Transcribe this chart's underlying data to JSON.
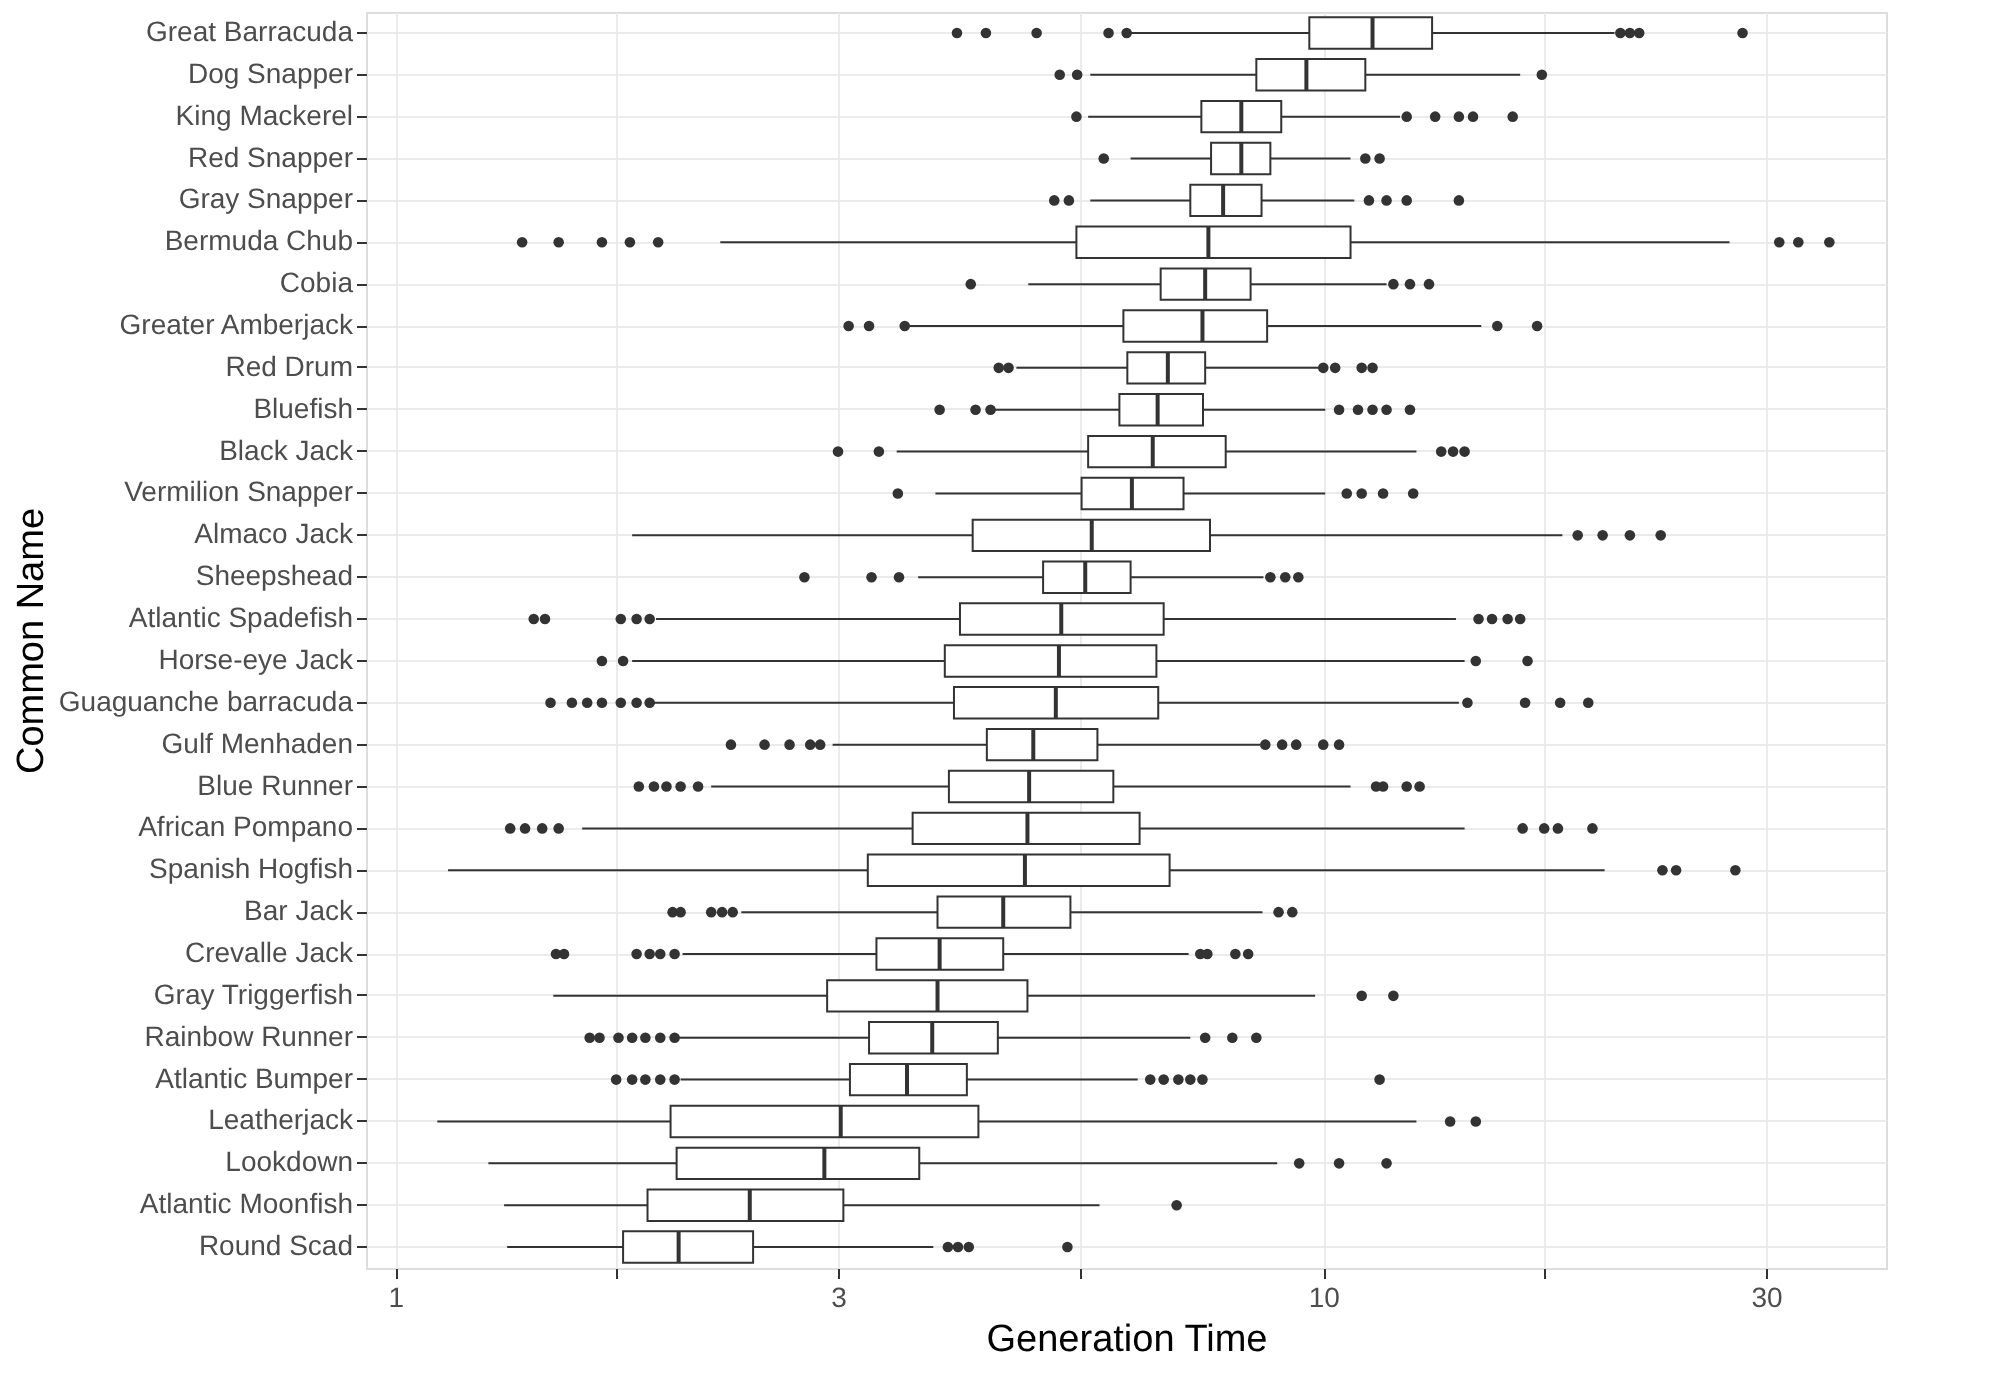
{
  "chart_data": {
    "type": "box",
    "orientation": "horizontal",
    "xlabel": "Generation Time",
    "ylabel": "Common Name",
    "log": "x",
    "grid": true,
    "xlim": [
      0.93,
      40.4
    ],
    "xticks": [
      1,
      {
        "value": 1.732,
        "label": null
      },
      3,
      {
        "value": 5.477,
        "label": null
      },
      10,
      {
        "value": 17.32,
        "label": null
      },
      30
    ],
    "categories": [
      "Great Barracuda",
      "Dog Snapper",
      "King Mackerel",
      "Red Snapper",
      "Gray Snapper",
      "Bermuda Chub",
      "Cobia",
      "Greater Amberjack",
      "Red Drum",
      "Bluefish",
      "Black Jack",
      "Vermilion Snapper",
      "Almaco Jack",
      "Sheepshead",
      "Atlantic Spadefish",
      "Horse-eye Jack",
      "Guaguanche barracuda",
      "Gulf Menhaden",
      "Blue Runner",
      "African Pompano",
      "Spanish Hogfish",
      "Bar Jack",
      "Crevalle Jack",
      "Gray Triggerfish",
      "Rainbow Runner",
      "Atlantic Bumper",
      "Leatherjack",
      "Lookdown",
      "Atlantic Moonfish",
      "Round Scad"
    ],
    "series": [
      {
        "color": "#333333",
        "boxes": [
          {
            "low": 6.2,
            "q1": 9.66,
            "median": 11.3,
            "q3": 13.1,
            "high": 20.6,
            "outliers": [
              4.03,
              4.33,
              4.91,
              5.87,
              6.14,
              20.9,
              21.4,
              21.9,
              28.3
            ]
          },
          {
            "low": 5.61,
            "q1": 8.47,
            "median": 9.59,
            "q3": 11.1,
            "high": 16.3,
            "outliers": [
              5.2,
              5.43,
              17.2
            ]
          },
          {
            "low": 5.58,
            "q1": 7.39,
            "median": 8.16,
            "q3": 9.01,
            "high": 12.1,
            "outliers": [
              5.42,
              12.3,
              13.2,
              14.0,
              14.5,
              16.0
            ]
          },
          {
            "low": 6.2,
            "q1": 7.57,
            "median": 8.16,
            "q3": 8.77,
            "high": 10.7,
            "outliers": [
              5.8,
              11.1,
              11.5
            ]
          },
          {
            "low": 5.61,
            "q1": 7.19,
            "median": 7.8,
            "q3": 8.58,
            "high": 10.8,
            "outliers": [
              5.13,
              5.32,
              11.2,
              11.7,
              12.3,
              14.0
            ]
          },
          {
            "low": 2.24,
            "q1": 5.42,
            "median": 7.52,
            "q3": 10.7,
            "high": 27.4,
            "outliers": [
              1.37,
              1.5,
              1.67,
              1.79,
              1.92,
              31.0,
              32.5,
              35.1
            ]
          },
          {
            "low": 4.81,
            "q1": 6.68,
            "median": 7.46,
            "q3": 8.35,
            "high": 11.7,
            "outliers": [
              4.17,
              11.9,
              12.4,
              13.0
            ]
          },
          {
            "low": 3.57,
            "q1": 6.09,
            "median": 7.41,
            "q3": 8.7,
            "high": 14.8,
            "outliers": [
              3.08,
              3.24,
              3.54,
              15.4,
              17.0
            ]
          },
          {
            "low": 4.67,
            "q1": 6.15,
            "median": 6.8,
            "q3": 7.46,
            "high": 9.88,
            "outliers": [
              4.47,
              4.58,
              10.0,
              10.3,
              11.0,
              11.3
            ]
          },
          {
            "low": 4.41,
            "q1": 6.03,
            "median": 6.63,
            "q3": 7.42,
            "high": 10.05,
            "outliers": [
              3.86,
              4.22,
              4.38,
              10.4,
              10.9,
              11.3,
              11.7,
              12.4
            ]
          },
          {
            "low": 3.47,
            "q1": 5.58,
            "median": 6.55,
            "q3": 7.85,
            "high": 12.6,
            "outliers": [
              3.0,
              3.32,
              13.4,
              13.8,
              14.2
            ]
          },
          {
            "low": 3.82,
            "q1": 5.49,
            "median": 6.22,
            "q3": 7.07,
            "high": 10.05,
            "outliers": [
              3.48,
              10.6,
              11.0,
              11.6,
              12.5
            ]
          },
          {
            "low": 1.8,
            "q1": 4.19,
            "median": 5.63,
            "q3": 7.55,
            "high": 18.1,
            "outliers": [
              18.8,
              20.0,
              21.4,
              23.1
            ]
          },
          {
            "low": 3.66,
            "q1": 4.99,
            "median": 5.54,
            "q3": 6.2,
            "high": 8.62,
            "outliers": [
              2.76,
              3.26,
              3.49,
              8.77,
              9.1,
              9.4
            ]
          },
          {
            "low": 1.91,
            "q1": 4.06,
            "median": 5.22,
            "q3": 6.73,
            "high": 13.9,
            "outliers": [
              1.41,
              1.45,
              1.75,
              1.82,
              1.88,
              14.7,
              15.2,
              15.8,
              16.3
            ]
          },
          {
            "low": 1.8,
            "q1": 3.91,
            "median": 5.19,
            "q3": 6.61,
            "high": 14.2,
            "outliers": [
              1.67,
              1.76,
              14.6,
              16.6
            ]
          },
          {
            "low": 1.89,
            "q1": 4.0,
            "median": 5.15,
            "q3": 6.64,
            "high": 14.0,
            "outliers": [
              1.47,
              1.55,
              1.61,
              1.67,
              1.75,
              1.82,
              1.88,
              14.3,
              16.5,
              18.0,
              19.3
            ]
          },
          {
            "low": 2.96,
            "q1": 4.34,
            "median": 4.87,
            "q3": 5.71,
            "high": 8.55,
            "outliers": [
              2.3,
              2.5,
              2.66,
              2.8,
              2.87,
              8.66,
              9.03,
              9.35,
              10.0,
              10.4
            ]
          },
          {
            "low": 2.19,
            "q1": 3.95,
            "median": 4.82,
            "q3": 5.94,
            "high": 10.7,
            "outliers": [
              1.83,
              1.9,
              1.96,
              2.03,
              2.12,
              11.4,
              11.6,
              12.3,
              12.7
            ]
          },
          {
            "low": 1.59,
            "q1": 3.61,
            "median": 4.8,
            "q3": 6.34,
            "high": 14.2,
            "outliers": [
              1.33,
              1.38,
              1.44,
              1.5,
              16.4,
              17.3,
              17.9,
              19.5
            ]
          },
          {
            "low": 1.14,
            "q1": 3.23,
            "median": 4.77,
            "q3": 6.83,
            "high": 20.1,
            "outliers": [
              23.2,
              24.0,
              27.8
            ]
          },
          {
            "low": 2.36,
            "q1": 3.84,
            "median": 4.52,
            "q3": 5.34,
            "high": 8.6,
            "outliers": [
              1.99,
              2.03,
              2.19,
              2.25,
              2.31,
              8.95,
              9.26
            ]
          },
          {
            "low": 2.04,
            "q1": 3.3,
            "median": 3.86,
            "q3": 4.52,
            "high": 7.16,
            "outliers": [
              1.49,
              1.52,
              1.82,
              1.88,
              1.93,
              2.0,
              7.37,
              7.5,
              8.04,
              8.3
            ]
          },
          {
            "low": 1.48,
            "q1": 2.92,
            "median": 3.84,
            "q3": 4.8,
            "high": 9.8,
            "outliers": [
              11.0,
              11.9
            ]
          },
          {
            "low": 2.02,
            "q1": 3.24,
            "median": 3.79,
            "q3": 4.46,
            "high": 7.19,
            "outliers": [
              1.62,
              1.66,
              1.74,
              1.8,
              1.86,
              1.93,
              2.0,
              7.46,
              7.98,
              8.47
            ]
          },
          {
            "low": 2.03,
            "q1": 3.09,
            "median": 3.56,
            "q3": 4.13,
            "high": 6.31,
            "outliers": [
              1.73,
              1.8,
              1.86,
              1.93,
              2.0,
              6.51,
              6.73,
              6.98,
              7.19,
              7.41,
              11.5
            ]
          },
          {
            "low": 1.11,
            "q1": 1.98,
            "median": 3.02,
            "q3": 4.25,
            "high": 12.6,
            "outliers": [
              13.7,
              14.6
            ]
          },
          {
            "low": 1.26,
            "q1": 2.01,
            "median": 2.9,
            "q3": 3.67,
            "high": 8.92,
            "outliers": [
              9.42,
              10.4,
              11.7
            ]
          },
          {
            "low": 1.31,
            "q1": 1.87,
            "median": 2.41,
            "q3": 3.04,
            "high": 5.74,
            "outliers": [
              6.95
            ]
          },
          {
            "low": 1.32,
            "q1": 1.76,
            "median": 2.02,
            "q3": 2.43,
            "high": 3.8,
            "outliers": [
              3.94,
              4.04,
              4.15,
              5.3
            ]
          }
        ]
      }
    ]
  }
}
